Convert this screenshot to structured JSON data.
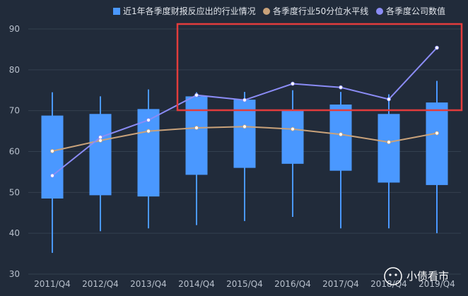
{
  "chart_data": {
    "type": "boxplot",
    "categories": [
      "2011/Q4",
      "2012/Q4",
      "2013/Q4",
      "2014/Q4",
      "2015/Q4",
      "2016/Q4",
      "2017/Q4",
      "2018/Q4",
      "2019/Q4"
    ],
    "yticks": [
      30,
      40,
      50,
      60,
      70,
      80,
      90
    ],
    "ylim": [
      30,
      90
    ],
    "grid": true,
    "legend_position": "top-right",
    "box_series": {
      "name": "近1年各季度财报反应出的行业情况",
      "color": "#4a98ff",
      "whisker_low": [
        35.2,
        40.5,
        41.2,
        42.0,
        43.0,
        44.0,
        41.2,
        41.2,
        40.0
      ],
      "q1": [
        48.5,
        49.3,
        49.0,
        54.3,
        56.0,
        57.0,
        55.3,
        52.4,
        51.8
      ],
      "q3": [
        68.8,
        69.2,
        70.4,
        73.5,
        72.7,
        70.0,
        71.5,
        69.2,
        72.0
      ],
      "whisker_high": [
        74.5,
        73.5,
        75.2,
        74.5,
        74.6,
        75.0,
        74.6,
        74.0,
        77.3
      ]
    },
    "series": [
      {
        "name": "各季度行业50分位水平线",
        "color": "#c9a27a",
        "values": [
          60.1,
          62.7,
          65.0,
          65.8,
          66.1,
          65.5,
          64.2,
          62.3,
          64.5
        ]
      },
      {
        "name": "各季度公司数值",
        "color": "#8b8cf6",
        "values": [
          54.1,
          63.5,
          67.7,
          73.8,
          72.6,
          76.6,
          75.7,
          72.8,
          85.4
        ]
      }
    ],
    "annotation": {
      "type": "highlight-rectangle",
      "color": "#e23c3c"
    }
  },
  "watermark": {
    "text": "小债看市"
  }
}
